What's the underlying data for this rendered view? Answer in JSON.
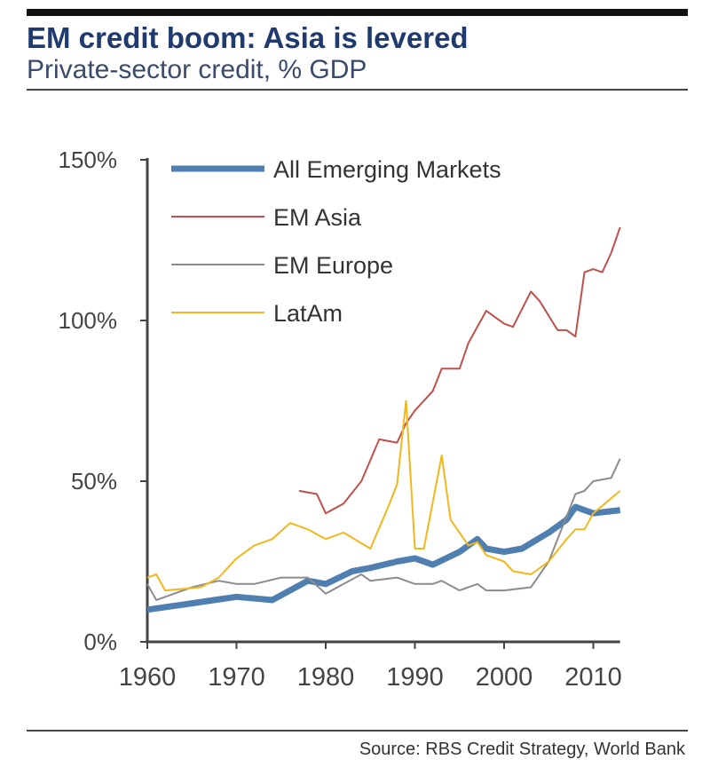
{
  "chart_data": {
    "type": "line",
    "title": "EM credit boom: Asia is levered",
    "subtitle": "Private-sector credit, % GDP",
    "source": "Source:  RBS Credit Strategy, World Bank",
    "xlim": [
      1960,
      2013
    ],
    "ylim": [
      0,
      150
    ],
    "xticks": [
      "1960",
      "1970",
      "1980",
      "1990",
      "2000",
      "2010"
    ],
    "yticks": [
      "0%",
      "50%",
      "100%",
      "150%"
    ],
    "legend_placement": "top-left",
    "grid": false,
    "series": [
      {
        "name": "All Emerging Markets",
        "color": "#4f7fb0",
        "x": [
          1960,
          1965,
          1970,
          1974,
          1978,
          1980,
          1983,
          1985,
          1988,
          1990,
          1992,
          1995,
          1997,
          1998,
          2000,
          2002,
          2005,
          2007,
          2008,
          2010,
          2013
        ],
        "values": [
          10,
          12,
          14,
          13,
          19,
          18,
          22,
          23,
          25,
          26,
          24,
          28,
          32,
          29,
          28,
          29,
          34,
          38,
          42,
          40,
          41
        ]
      },
      {
        "name": "EM Asia",
        "color": "#c0504d",
        "x": [
          1977,
          1979,
          1980,
          1982,
          1984,
          1986,
          1988,
          1989,
          1990,
          1992,
          1993,
          1995,
          1996,
          1998,
          2000,
          2001,
          2003,
          2004,
          2006,
          2007,
          2008,
          2009,
          2010,
          2011,
          2012,
          2013
        ],
        "values": [
          47,
          46,
          40,
          43,
          50,
          63,
          62,
          68,
          72,
          78,
          85,
          85,
          93,
          103,
          99,
          98,
          109,
          106,
          97,
          97,
          95,
          115,
          116,
          115,
          121,
          129
        ]
      },
      {
        "name": "EM Europe",
        "color": "#8c8c8c",
        "x": [
          1960,
          1961,
          1965,
          1968,
          1970,
          1972,
          1975,
          1978,
          1980,
          1982,
          1984,
          1985,
          1988,
          1990,
          1992,
          1993,
          1995,
          1997,
          1998,
          2000,
          2003,
          2005,
          2008,
          2009,
          2010,
          2012,
          2013
        ],
        "values": [
          18,
          13,
          17,
          19,
          18,
          18,
          20,
          20,
          15,
          18,
          21,
          19,
          20,
          18,
          18,
          19,
          16,
          18,
          16,
          16,
          17,
          25,
          46,
          47,
          50,
          51,
          57
        ]
      },
      {
        "name": "LatAm",
        "color": "#f2b71d",
        "x": [
          1960,
          1961,
          1962,
          1966,
          1968,
          1970,
          1972,
          1974,
          1976,
          1978,
          1980,
          1982,
          1985,
          1987,
          1988,
          1989,
          1990,
          1991,
          1993,
          1994,
          1996,
          1997,
          1998,
          2000,
          2001,
          2003,
          2005,
          2007,
          2008,
          2009,
          2010,
          2013
        ],
        "values": [
          20,
          21,
          16,
          17,
          20,
          26,
          30,
          32,
          37,
          35,
          32,
          34,
          29,
          42,
          49,
          75,
          29,
          29,
          58,
          38,
          30,
          31,
          27,
          25,
          22,
          21,
          25,
          32,
          35,
          35,
          40,
          47
        ]
      }
    ]
  }
}
